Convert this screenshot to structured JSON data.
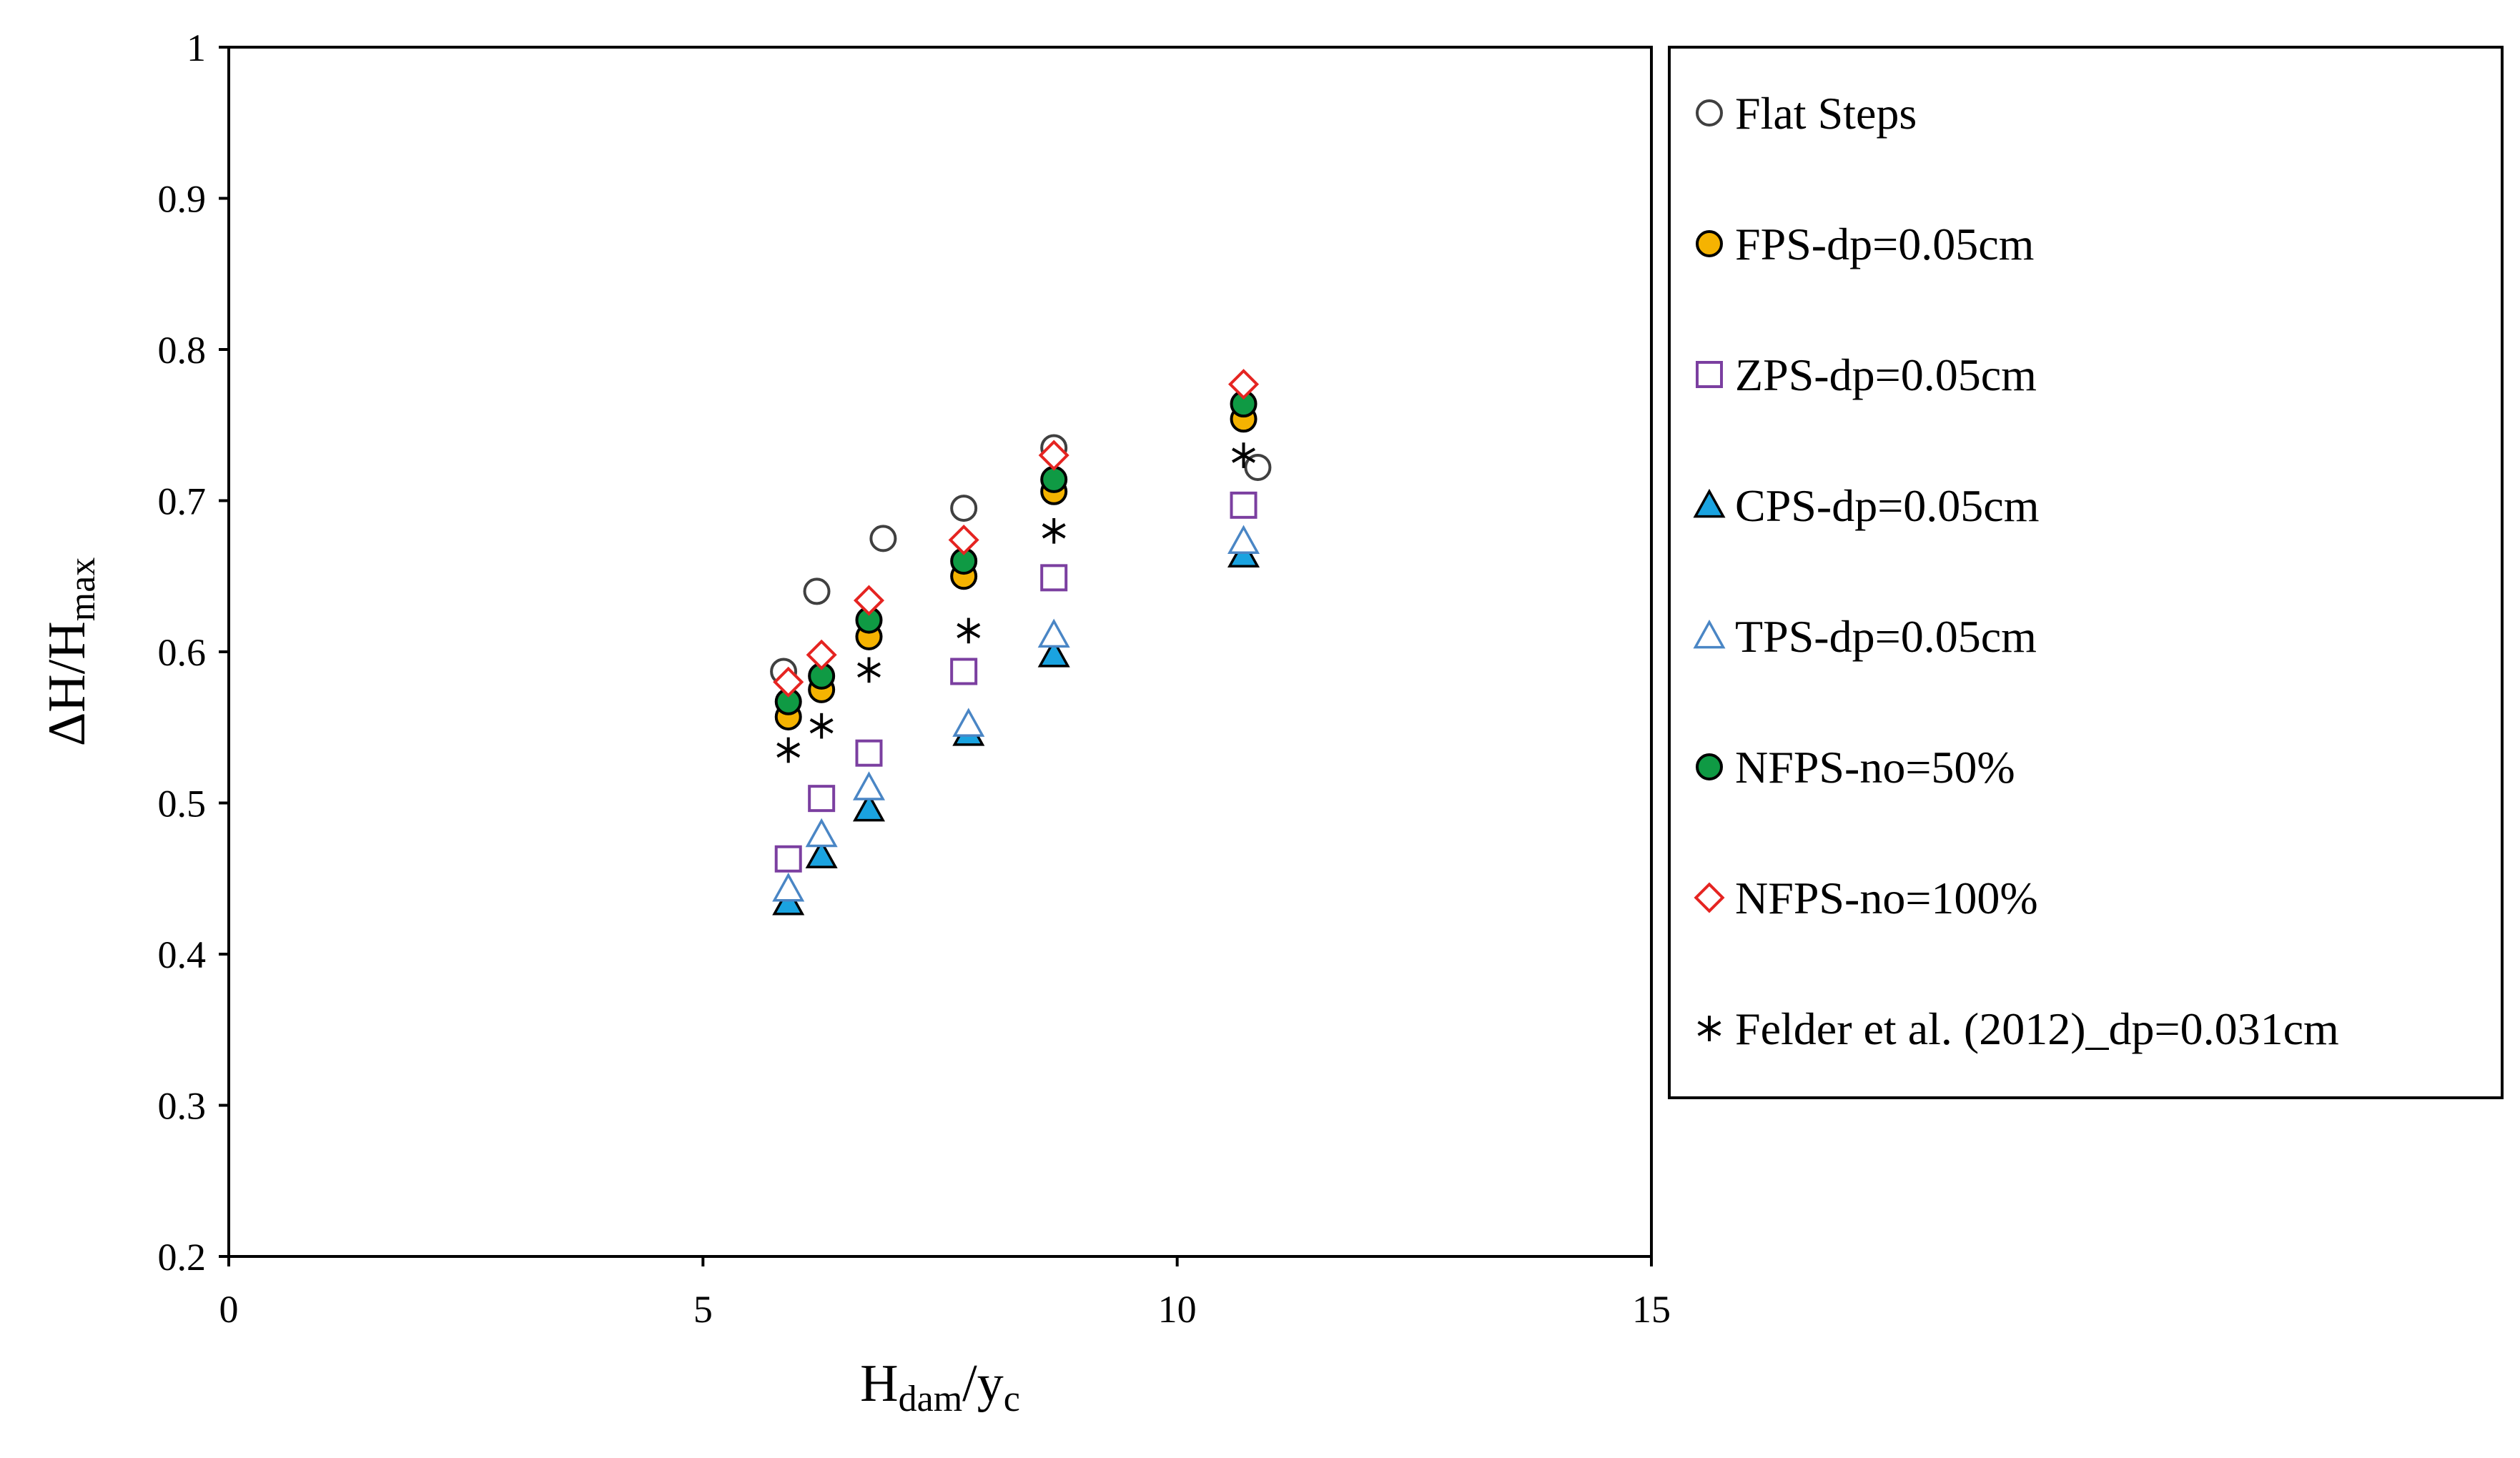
{
  "chart_data": {
    "type": "scatter",
    "title": "",
    "xlabel": {
      "main": "H",
      "sub1": "dam",
      "mid": "/y",
      "sub2": "c"
    },
    "ylabel": {
      "main": "ΔH/H",
      "sub": "max"
    },
    "xlim": [
      0,
      15
    ],
    "ylim": [
      0.2,
      1
    ],
    "xticks": [
      "0",
      "5",
      "10",
      "15"
    ],
    "yticks": [
      "0.2",
      "0.3",
      "0.4",
      "0.5",
      "0.6",
      "0.7",
      "0.8",
      "0.9",
      "1"
    ],
    "grid": false,
    "legend_position": "right",
    "series": [
      {
        "name": "Flat Steps",
        "marker": "circle-open",
        "stroke": "#404040",
        "fill": "#ffffff",
        "x": [
          5.85,
          6.2,
          6.9,
          7.75,
          8.7,
          10.85
        ],
        "y": [
          0.587,
          0.64,
          0.675,
          0.695,
          0.735,
          0.722
        ]
      },
      {
        "name": "FPS-dp=0.05cm",
        "marker": "circle-filled",
        "stroke": "#000000",
        "fill": "#f5b301",
        "x": [
          5.9,
          6.25,
          6.75,
          7.75,
          8.7,
          10.7
        ],
        "y": [
          0.557,
          0.575,
          0.61,
          0.65,
          0.706,
          0.754
        ]
      },
      {
        "name": "ZPS-dp=0.05cm",
        "marker": "square-open",
        "stroke": "#7b3fa0",
        "fill": "#ffffff",
        "x": [
          5.9,
          6.25,
          6.75,
          7.75,
          8.7,
          10.7
        ],
        "y": [
          0.463,
          0.503,
          0.533,
          0.587,
          0.649,
          0.697
        ]
      },
      {
        "name": "CPS-dp=0.05cm",
        "marker": "triangle-filled",
        "stroke": "#000000",
        "fill": "#1aa3e0",
        "x": [
          5.9,
          6.25,
          6.75,
          7.8,
          8.7,
          10.7
        ],
        "y": [
          0.434,
          0.465,
          0.496,
          0.546,
          0.598,
          0.664
        ]
      },
      {
        "name": "TPS-dp=0.05cm",
        "marker": "triangle-open",
        "stroke": "#4a86c5",
        "fill": "#ffffff",
        "x": [
          5.9,
          6.25,
          6.75,
          7.8,
          8.7,
          10.7
        ],
        "y": [
          0.443,
          0.479,
          0.51,
          0.552,
          0.611,
          0.673
        ]
      },
      {
        "name": "NFPS-no=50%",
        "marker": "circle-filled",
        "stroke": "#000000",
        "fill": "#0f9a44",
        "x": [
          5.9,
          6.25,
          6.75,
          7.75,
          8.7,
          10.7
        ],
        "y": [
          0.567,
          0.584,
          0.621,
          0.66,
          0.714,
          0.764
        ]
      },
      {
        "name": "NFPS-no=100%",
        "marker": "diamond-open",
        "stroke": "#e52421",
        "fill": "#ffffff",
        "x": [
          5.9,
          6.25,
          6.75,
          7.75,
          8.7,
          10.7
        ],
        "y": [
          0.58,
          0.598,
          0.634,
          0.674,
          0.73,
          0.777
        ]
      },
      {
        "name": "Felder et al. (2012)_dp=0.031cm",
        "marker": "asterisk",
        "stroke": "#000000",
        "fill": "none",
        "x": [
          5.9,
          6.25,
          6.75,
          7.8,
          8.7,
          10.7
        ],
        "y": [
          0.535,
          0.551,
          0.588,
          0.614,
          0.68,
          0.73
        ]
      }
    ]
  }
}
